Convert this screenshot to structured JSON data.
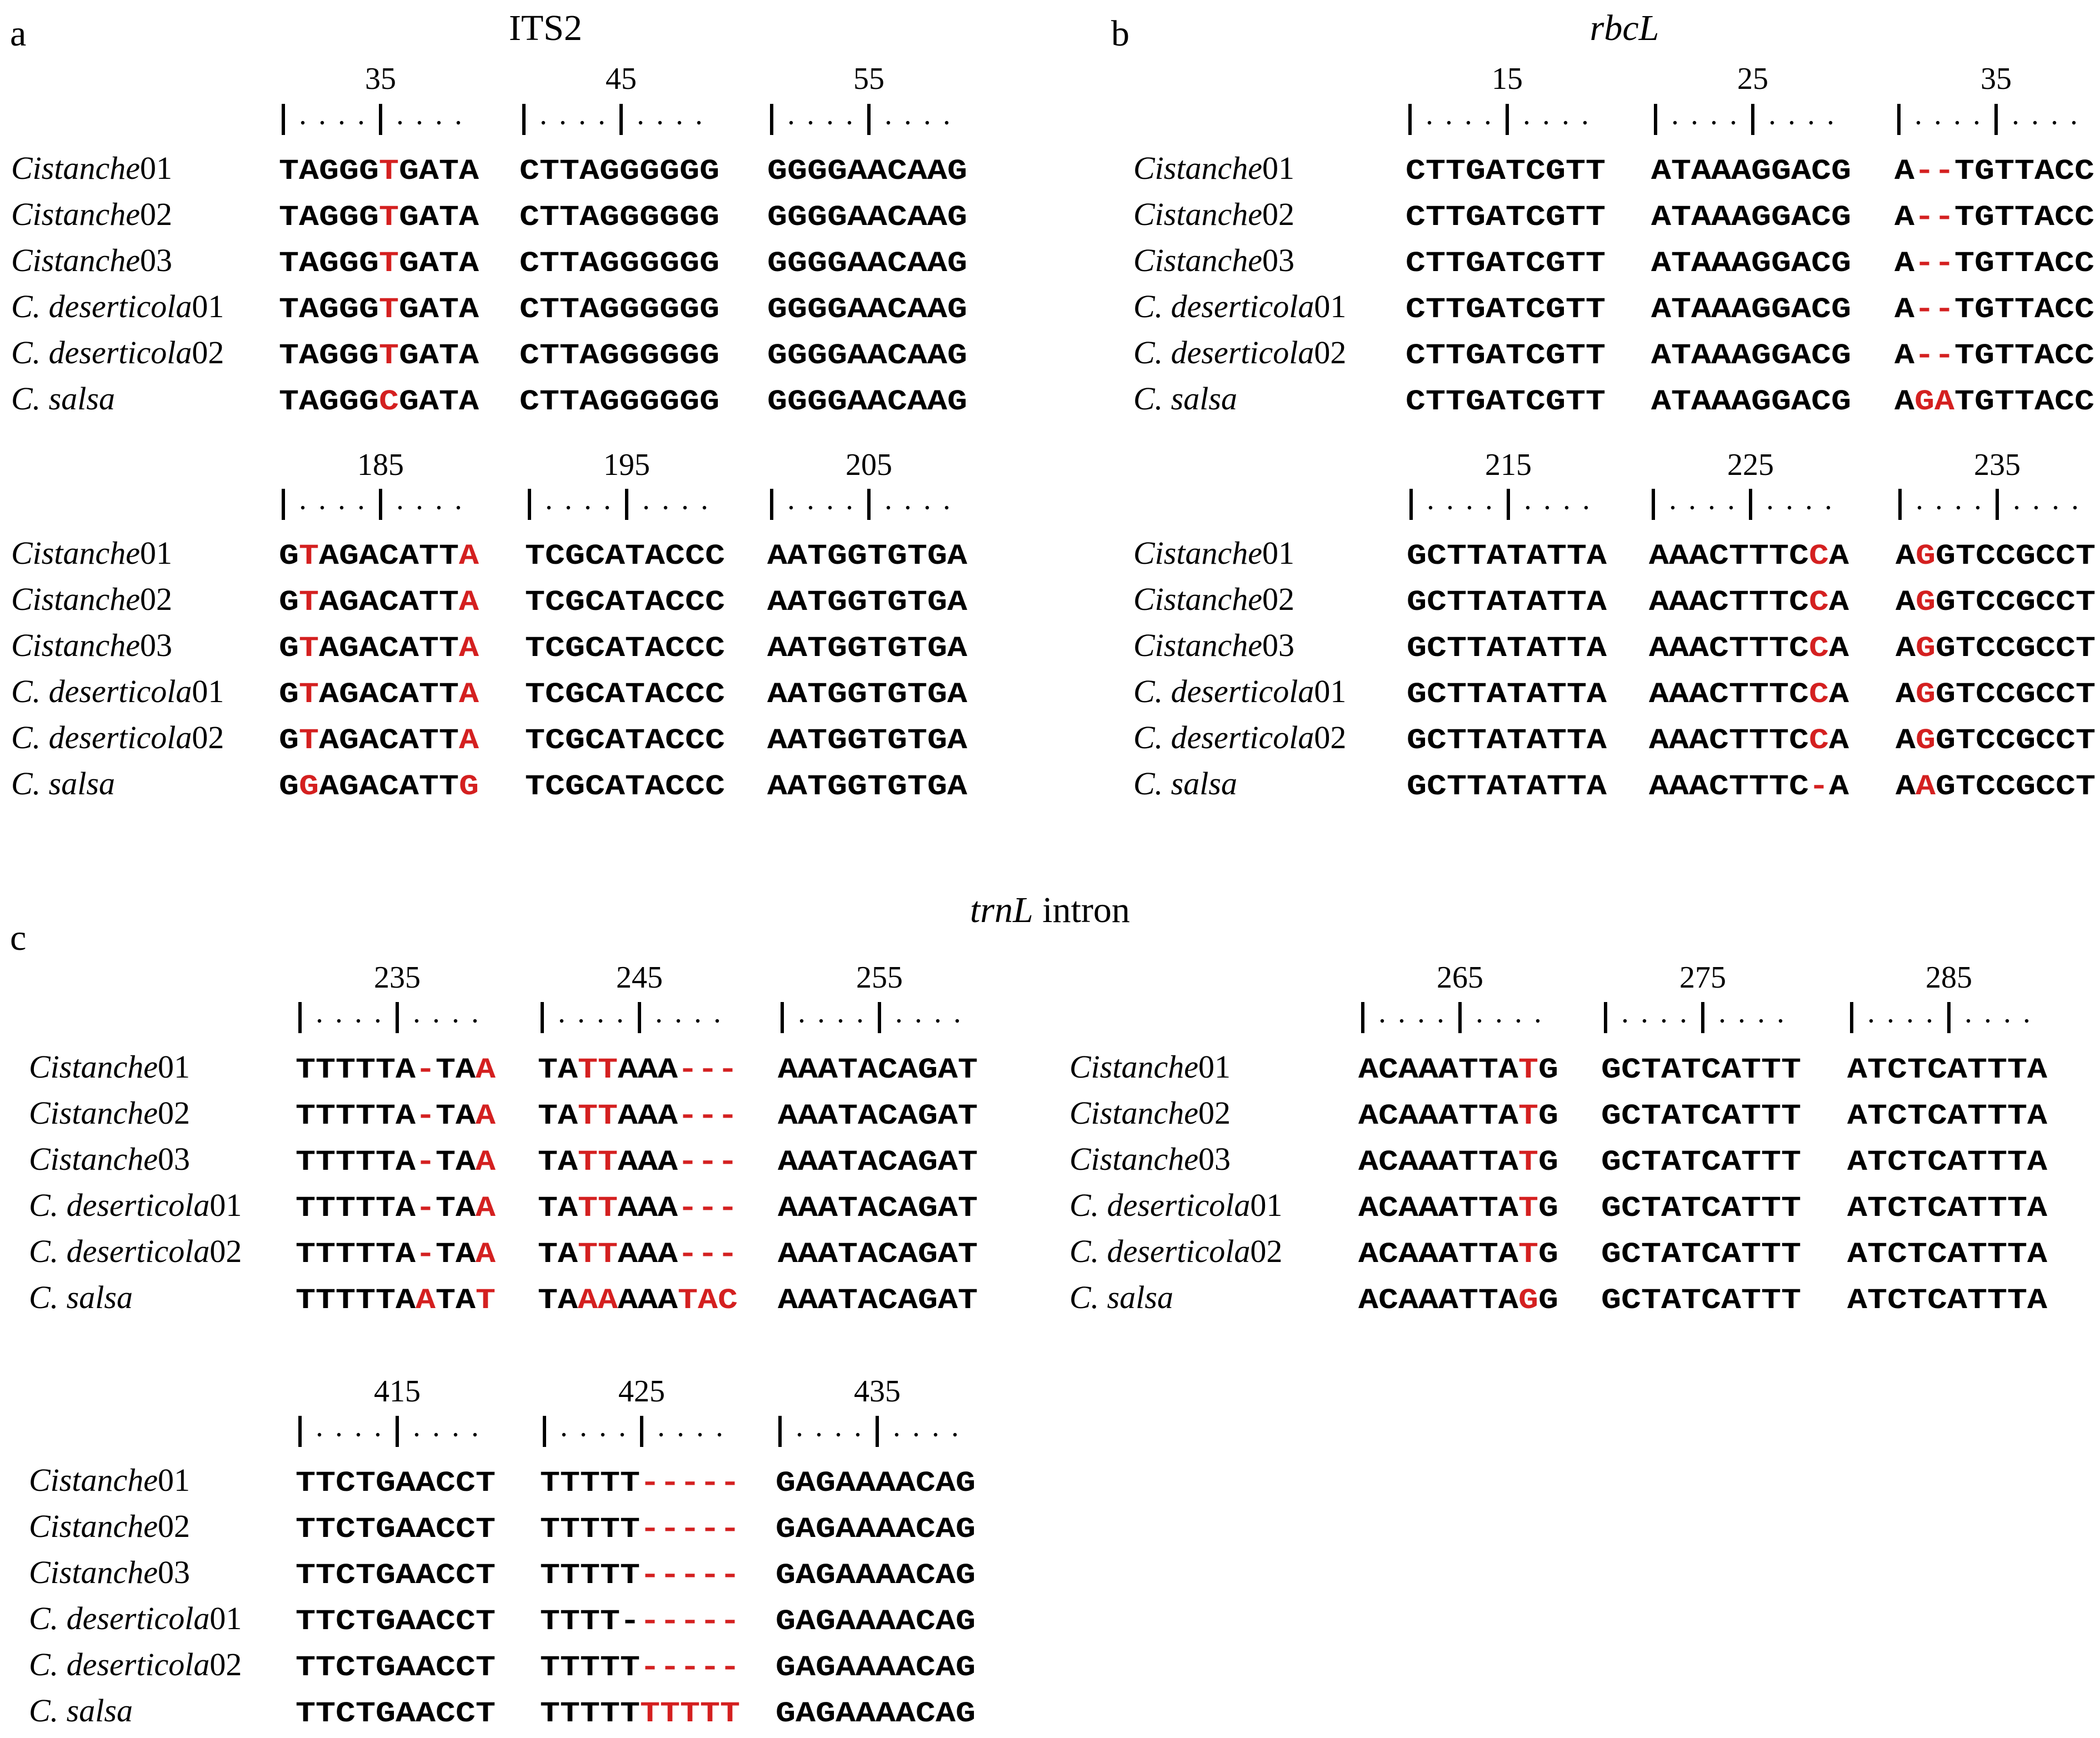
{
  "panels": [
    {
      "letter": "a",
      "title": "ITS2",
      "title_italic": false,
      "blocks": [
        {
          "ticks": [
            "35",
            "45",
            "55"
          ],
          "rows": [
            {
              "name": "Cistanche",
              "suffix": "01",
              "cols": [
                "TAGGG[T]GATA",
                "CTTAGGGGGG",
                "GGGGAACAAG"
              ]
            },
            {
              "name": "Cistanche",
              "suffix": "02",
              "cols": [
                "TAGGG[T]GATA",
                "CTTAGGGGGG",
                "GGGGAACAAG"
              ]
            },
            {
              "name": "Cistanche",
              "suffix": "03",
              "cols": [
                "TAGGG[T]GATA",
                "CTTAGGGGGG",
                "GGGGAACAAG"
              ]
            },
            {
              "name": "C. deserticola",
              "suffix": "01",
              "cols": [
                "TAGGG[T]GATA",
                "CTTAGGGGGG",
                "GGGGAACAAG"
              ]
            },
            {
              "name": "C. deserticola",
              "suffix": "02",
              "cols": [
                "TAGGG[T]GATA",
                "CTTAGGGGGG",
                "GGGGAACAAG"
              ]
            },
            {
              "name": "C. salsa",
              "suffix": "",
              "cols": [
                "TAGGG[C]GATA",
                "CTTAGGGGGG",
                "GGGGAACAAG"
              ]
            }
          ]
        },
        {
          "ticks": [
            "185",
            "195",
            "205"
          ],
          "rows": [
            {
              "name": "Cistanche",
              "suffix": "01",
              "cols": [
                "G[T]AGACATT[A]",
                "TCGCATACCC",
                "AATGGTGTGA"
              ]
            },
            {
              "name": "Cistanche",
              "suffix": "02",
              "cols": [
                "G[T]AGACATT[A]",
                "TCGCATACCC",
                "AATGGTGTGA"
              ]
            },
            {
              "name": "Cistanche",
              "suffix": "03",
              "cols": [
                "G[T]AGACATT[A]",
                "TCGCATACCC",
                "AATGGTGTGA"
              ]
            },
            {
              "name": "C. deserticola",
              "suffix": "01",
              "cols": [
                "G[T]AGACATT[A]",
                "TCGCATACCC",
                "AATGGTGTGA"
              ]
            },
            {
              "name": "C. deserticola",
              "suffix": "02",
              "cols": [
                "G[T]AGACATT[A]",
                "TCGCATACCC",
                "AATGGTGTGA"
              ]
            },
            {
              "name": "C. salsa",
              "suffix": "",
              "cols": [
                "G[G]AGACATT[G]",
                "TCGCATACCC",
                "AATGGTGTGA"
              ]
            }
          ]
        }
      ]
    },
    {
      "letter": "b",
      "title": "rbcL",
      "title_italic": true,
      "blocks": [
        {
          "ticks": [
            "15",
            "25",
            "35"
          ],
          "rows": [
            {
              "name": "Cistanche",
              "suffix": "01",
              "cols": [
                "CTTGATCGTT",
                "ATAAAGGACG",
                "A[--]TGTTACC"
              ]
            },
            {
              "name": "Cistanche",
              "suffix": "02",
              "cols": [
                "CTTGATCGTT",
                "ATAAAGGACG",
                "A[--]TGTTACC"
              ]
            },
            {
              "name": "Cistanche",
              "suffix": "03",
              "cols": [
                "CTTGATCGTT",
                "ATAAAGGACG",
                "A[--]TGTTACC"
              ]
            },
            {
              "name": "C. deserticola",
              "suffix": "01",
              "cols": [
                "CTTGATCGTT",
                "ATAAAGGACG",
                "A[--]TGTTACC"
              ]
            },
            {
              "name": "C. deserticola",
              "suffix": "02",
              "cols": [
                "CTTGATCGTT",
                "ATAAAGGACG",
                "A[--]TGTTACC"
              ]
            },
            {
              "name": "C. salsa",
              "suffix": "",
              "cols": [
                "CTTGATCGTT",
                "ATAAAGGACG",
                "A[GA]TGTTACC"
              ]
            }
          ]
        },
        {
          "ticks": [
            "215",
            "225",
            "235"
          ],
          "rows": [
            {
              "name": "Cistanche",
              "suffix": "01",
              "cols": [
                "GCTTATATTA",
                "AAACTTTC[C]A",
                "A[G]GTCCGCCT"
              ]
            },
            {
              "name": "Cistanche",
              "suffix": "02",
              "cols": [
                "GCTTATATTA",
                "AAACTTTC[C]A",
                "A[G]GTCCGCCT"
              ]
            },
            {
              "name": "Cistanche",
              "suffix": "03",
              "cols": [
                "GCTTATATTA",
                "AAACTTTC[C]A",
                "A[G]GTCCGCCT"
              ]
            },
            {
              "name": "C. deserticola",
              "suffix": "01",
              "cols": [
                "GCTTATATTA",
                "AAACTTTC[C]A",
                "A[G]GTCCGCCT"
              ]
            },
            {
              "name": "C. deserticola",
              "suffix": "02",
              "cols": [
                "GCTTATATTA",
                "AAACTTTC[C]A",
                "A[G]GTCCGCCT"
              ]
            },
            {
              "name": "C. salsa",
              "suffix": "",
              "cols": [
                "GCTTATATTA",
                "AAACTTTC[-]A",
                "A[A]GTCCGCCT"
              ]
            }
          ]
        }
      ]
    },
    {
      "letter": "c",
      "title": "trnL",
      "title_suffix": " intron",
      "title_italic": true,
      "blocks": [
        {
          "ticks": [
            "235",
            "245",
            "255"
          ],
          "rows": [
            {
              "name": "Cistanche",
              "suffix": "01",
              "cols": [
                "TTTTTA[-]TA[A]",
                "TA[TT]AAA[---]",
                "AAATACAGAT"
              ]
            },
            {
              "name": "Cistanche",
              "suffix": "02",
              "cols": [
                "TTTTTA[-]TA[A]",
                "TA[TT]AAA[---]",
                "AAATACAGAT"
              ]
            },
            {
              "name": "Cistanche",
              "suffix": "03",
              "cols": [
                "TTTTTA[-]TA[A]",
                "TA[TT]AAA[---]",
                "AAATACAGAT"
              ]
            },
            {
              "name": "C. deserticola",
              "suffix": "01",
              "cols": [
                "TTTTTA[-]TA[A]",
                "TA[TT]AAA[---]",
                "AAATACAGAT"
              ]
            },
            {
              "name": "C. deserticola",
              "suffix": "02",
              "cols": [
                "TTTTTA[-]TA[A]",
                "TA[TT]AAA[---]",
                "AAATACAGAT"
              ]
            },
            {
              "name": "C. salsa",
              "suffix": "",
              "cols": [
                "TTTTTA[A]TA[T]",
                "TA[AA]AAA[TAC]",
                "AAATACAGAT"
              ]
            }
          ]
        },
        {
          "ticks": [
            "265",
            "275",
            "285"
          ],
          "rows": [
            {
              "name": "Cistanche",
              "suffix": "01",
              "cols": [
                "ACAAATTA[T]G",
                "GCTATCATTT",
                "ATCTCATTTA"
              ]
            },
            {
              "name": "Cistanche",
              "suffix": "02",
              "cols": [
                "ACAAATTA[T]G",
                "GCTATCATTT",
                "ATCTCATTTA"
              ]
            },
            {
              "name": "Cistanche",
              "suffix": "03",
              "cols": [
                "ACAAATTA[T]G",
                "GCTATCATTT",
                "ATCTCATTTA"
              ]
            },
            {
              "name": "C. deserticola",
              "suffix": "01",
              "cols": [
                "ACAAATTA[T]G",
                "GCTATCATTT",
                "ATCTCATTTA"
              ]
            },
            {
              "name": "C. deserticola",
              "suffix": "02",
              "cols": [
                "ACAAATTA[T]G",
                "GCTATCATTT",
                "ATCTCATTTA"
              ]
            },
            {
              "name": "C. salsa",
              "suffix": "",
              "cols": [
                "ACAAATTA[G]G",
                "GCTATCATTT",
                "ATCTCATTTA"
              ]
            }
          ]
        },
        {
          "ticks": [
            "415",
            "425",
            "435"
          ],
          "rows": [
            {
              "name": "Cistanche",
              "suffix": "01",
              "cols": [
                "TTCTGAACCT",
                "TTTTT[-----]",
                "GAGAAAACAG"
              ]
            },
            {
              "name": "Cistanche",
              "suffix": "02",
              "cols": [
                "TTCTGAACCT",
                "TTTTT[-----]",
                "GAGAAAACAG"
              ]
            },
            {
              "name": "Cistanche",
              "suffix": "03",
              "cols": [
                "TTCTGAACCT",
                "TTTTT[-----]",
                "GAGAAAACAG"
              ]
            },
            {
              "name": "C. deserticola",
              "suffix": "01",
              "cols": [
                "TTCTGAACCT",
                "TTTT-[-----]",
                "GAGAAAACAG"
              ]
            },
            {
              "name": "C. deserticola",
              "suffix": "02",
              "cols": [
                "TTCTGAACCT",
                "TTTTT[-----]",
                "GAGAAAACAG"
              ]
            },
            {
              "name": "C. salsa",
              "suffix": "",
              "cols": [
                "TTCTGAACCT",
                "TTTTT[TTTTT]",
                "GAGAAAACAG"
              ]
            }
          ]
        }
      ]
    }
  ],
  "colors": {
    "text": "#000000",
    "highlight": "#d42020"
  }
}
